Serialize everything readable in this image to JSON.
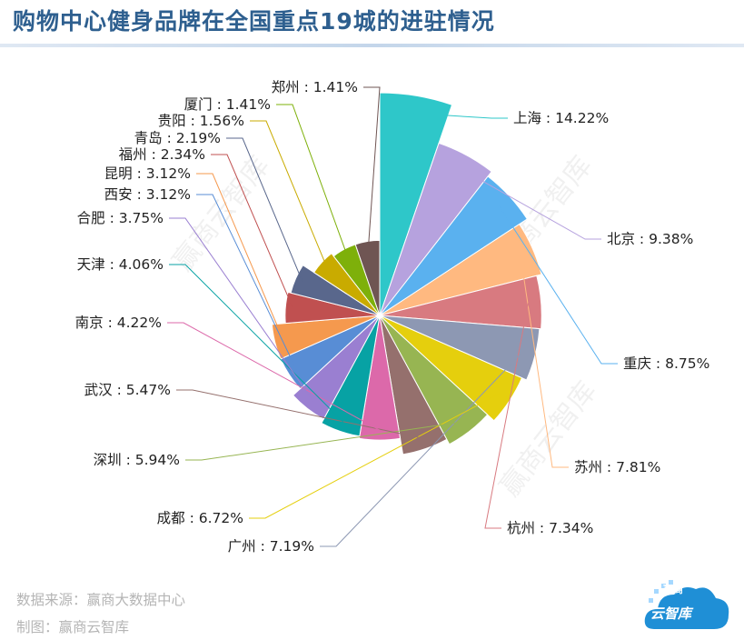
{
  "page_title": "购物中心健身品牌在全国重点19城的进驻情况",
  "watermarks": [
    "赢商云智库",
    "赢商云智库",
    "赢商云智库"
  ],
  "footer": {
    "source": "数据来源：赢商大数据中心",
    "producer": "制图：赢商云智库"
  },
  "logo": {
    "top_text": "赢商",
    "bottom_text": "云智库"
  },
  "chart_data": {
    "type": "pie",
    "variant": "rose",
    "title": "购物中心健身品牌在全国重点19城的进驻情况",
    "label_separator": " : ",
    "unit": "%",
    "slices": [
      {
        "name": "上海",
        "value": 14.22,
        "color": "#2ec7c9"
      },
      {
        "name": "北京",
        "value": 9.38,
        "color": "#b6a2de"
      },
      {
        "name": "重庆",
        "value": 8.75,
        "color": "#5ab1ef"
      },
      {
        "name": "苏州",
        "value": 7.81,
        "color": "#ffb980"
      },
      {
        "name": "杭州",
        "value": 7.34,
        "color": "#d87a80"
      },
      {
        "name": "广州",
        "value": 7.19,
        "color": "#8d98b3"
      },
      {
        "name": "成都",
        "value": 6.72,
        "color": "#e5cf0d"
      },
      {
        "name": "深圳",
        "value": 5.94,
        "color": "#97b552"
      },
      {
        "name": "武汉",
        "value": 5.47,
        "color": "#95706d"
      },
      {
        "name": "南京",
        "value": 4.22,
        "color": "#dc69aa"
      },
      {
        "name": "天津",
        "value": 4.06,
        "color": "#07a2a4"
      },
      {
        "name": "合肥",
        "value": 3.75,
        "color": "#9a7fd1"
      },
      {
        "name": "西安",
        "value": 3.12,
        "color": "#588dd5"
      },
      {
        "name": "昆明",
        "value": 3.12,
        "color": "#f5994e"
      },
      {
        "name": "福州",
        "value": 2.34,
        "color": "#c05050"
      },
      {
        "name": "青岛",
        "value": 2.19,
        "color": "#59678c"
      },
      {
        "name": "贵阳",
        "value": 1.56,
        "color": "#c9ab00"
      },
      {
        "name": "厦门",
        "value": 1.41,
        "color": "#7eb00a"
      },
      {
        "name": "郑州",
        "value": 1.41,
        "color": "#6f5553"
      }
    ],
    "label_color": "#222222"
  }
}
